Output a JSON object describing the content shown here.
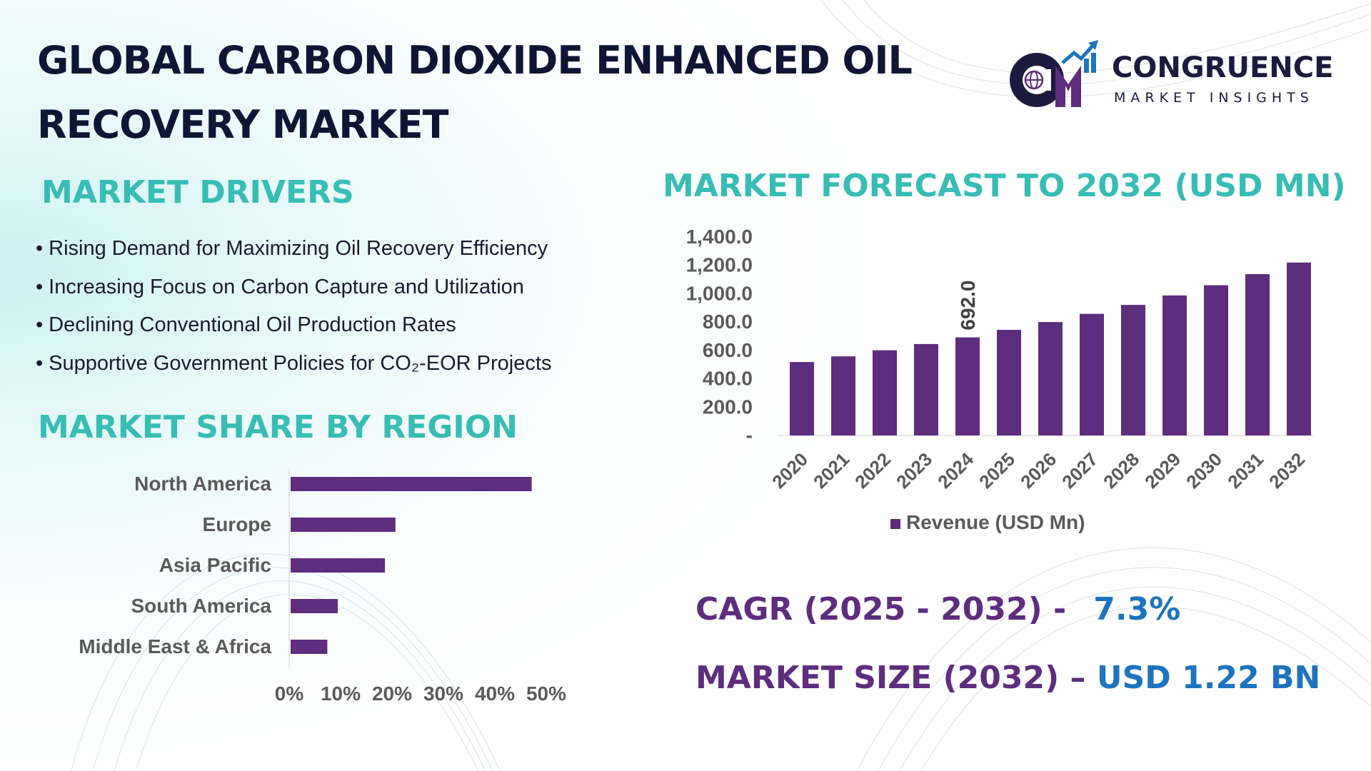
{
  "title": {
    "line1": "GLOBAL CARBON DIOXIDE ENHANCED OIL",
    "line2": "RECOVERY MARKET"
  },
  "logo": {
    "initials": "CM",
    "name": "CONGRUENCE",
    "subtitle": "MARKET INSIGHTS"
  },
  "drivers": {
    "heading": "MARKET DRIVERS",
    "items": [
      "Rising Demand for Maximizing Oil Recovery Efficiency",
      "Increasing Focus on Carbon Capture and Utilization",
      "Declining Conventional Oil Production Rates",
      "Supportive Government Policies for CO₂-EOR Projects"
    ]
  },
  "stats": {
    "cagr_label": "CAGR (2025 - 2032) -",
    "cagr_value": "7.3%",
    "size_label": "MARKET SIZE (2032) –",
    "size_value": "USD 1.22 BN"
  },
  "colors": {
    "bar": "#5e2d7e",
    "heading": "#38bdb5",
    "title": "#0f1535",
    "value_blue": "#1d74be"
  },
  "chart_data": [
    {
      "type": "bar",
      "orientation": "horizontal",
      "title": "MARKET SHARE BY REGION",
      "categories": [
        "North America",
        "Europe",
        "Asia Pacific",
        "South America",
        "Middle East & Africa"
      ],
      "values": [
        46,
        20,
        18,
        9,
        7
      ],
      "xlim": [
        0,
        50
      ],
      "xticks": [
        "0%",
        "10%",
        "20%",
        "30%",
        "40%",
        "50%"
      ],
      "grid": false
    },
    {
      "type": "bar",
      "title": "MARKET FORECAST TO 2032 (USD MN)",
      "categories": [
        "2020",
        "2021",
        "2022",
        "2023",
        "2024",
        "2025",
        "2026",
        "2027",
        "2028",
        "2029",
        "2030",
        "2031",
        "2032"
      ],
      "series": [
        {
          "name": "Revenue (USD Mn)",
          "values": [
            518,
            558,
            601,
            645,
            692,
            745,
            800,
            858,
            921,
            988,
            1060,
            1138,
            1220
          ]
        }
      ],
      "data_labels": [
        {
          "category": "2024",
          "text": "692.0"
        }
      ],
      "ylim": [
        0,
        1400
      ],
      "yticks": [
        "-",
        "200.0",
        "400.0",
        "600.0",
        "800.0",
        "1,000.0",
        "1,200.0",
        "1,400.0"
      ],
      "legend": "bottom",
      "grid": false
    }
  ]
}
